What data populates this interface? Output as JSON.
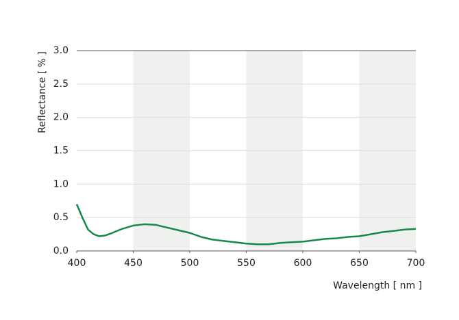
{
  "chart_data": {
    "type": "line",
    "x_label": "Wavelength [ nm ]",
    "y_label": "Reflectance [ % ]",
    "x": [
      400,
      405,
      410,
      415,
      420,
      425,
      430,
      440,
      450,
      460,
      470,
      480,
      490,
      500,
      510,
      520,
      530,
      540,
      550,
      560,
      570,
      580,
      590,
      600,
      610,
      620,
      630,
      640,
      650,
      660,
      670,
      680,
      690,
      700
    ],
    "series": [
      {
        "color": "#14894a",
        "values": [
          0.7,
          0.5,
          0.32,
          0.25,
          0.22,
          0.23,
          0.26,
          0.33,
          0.38,
          0.4,
          0.39,
          0.35,
          0.31,
          0.27,
          0.21,
          0.17,
          0.15,
          0.13,
          0.11,
          0.1,
          0.1,
          0.12,
          0.13,
          0.14,
          0.16,
          0.18,
          0.19,
          0.21,
          0.22,
          0.25,
          0.28,
          0.3,
          0.32,
          0.33
        ]
      }
    ],
    "xlim": [
      400,
      700
    ],
    "xticks": [
      400,
      450,
      500,
      550,
      600,
      650,
      700
    ],
    "ylim": [
      0,
      3
    ],
    "yticks": [
      {
        "value": 0,
        "label": "0.0"
      },
      0.5,
      {
        "value": 1,
        "label": "1.0"
      },
      1.5,
      {
        "value": 2,
        "label": "2.0"
      },
      2.5,
      {
        "value": 3,
        "label": "3.0"
      }
    ],
    "grid": true,
    "alternate_shading": true
  }
}
